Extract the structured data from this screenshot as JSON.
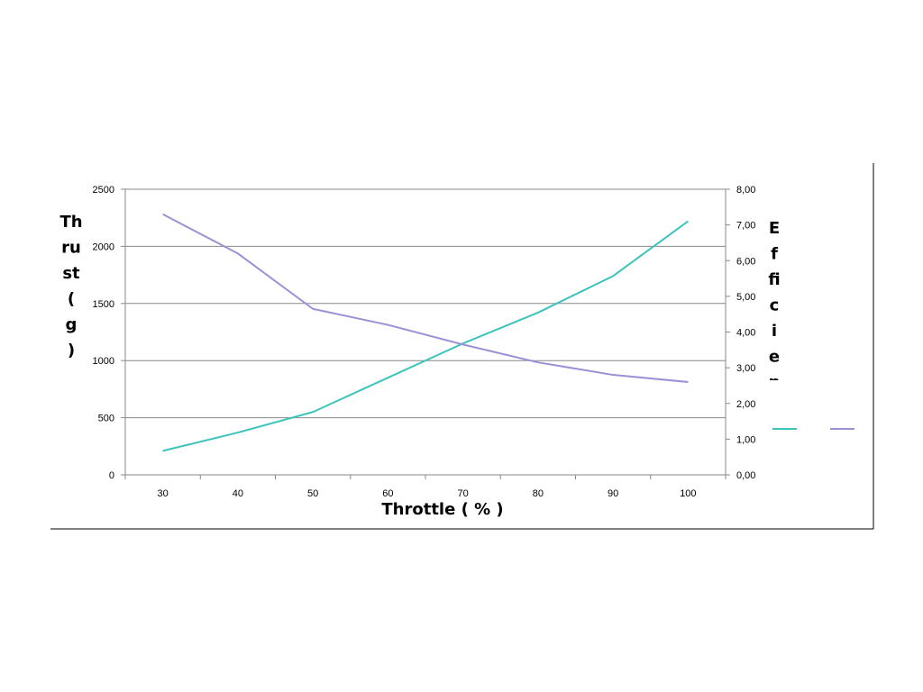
{
  "chart_data": {
    "type": "line",
    "xlabel": "Throttle ( % )",
    "ylabel_left_lines": [
      "Th",
      "ru",
      "st",
      "(",
      "g",
      ")"
    ],
    "ylabel_right_lines": [
      "E",
      "f",
      "fi",
      "c",
      "i",
      "e",
      "n"
    ],
    "categories": [
      "30",
      "40",
      "50",
      "60",
      "70",
      "80",
      "90",
      "100"
    ],
    "x": [
      30,
      40,
      50,
      60,
      70,
      80,
      90,
      100
    ],
    "ylim_left": [
      0,
      2500
    ],
    "ylim_right": [
      0,
      8
    ],
    "yticks_left": [
      "0",
      "500",
      "1000",
      "1500",
      "2000",
      "2500"
    ],
    "yticks_right": [
      "0,00",
      "1,00",
      "2,00",
      "3,00",
      "4,00",
      "5,00",
      "6,00",
      "7,00",
      "8,00"
    ],
    "grid": true,
    "legend": "right",
    "series": [
      {
        "axis": "left",
        "color": "#3cc3bb",
        "values": [
          210,
          370,
          550,
          850,
          1150,
          1420,
          1740,
          2220
        ]
      },
      {
        "axis": "right",
        "color": "#9b90d6",
        "values": [
          7.3,
          6.2,
          4.65,
          4.2,
          3.65,
          3.15,
          2.8,
          2.6
        ]
      }
    ]
  }
}
